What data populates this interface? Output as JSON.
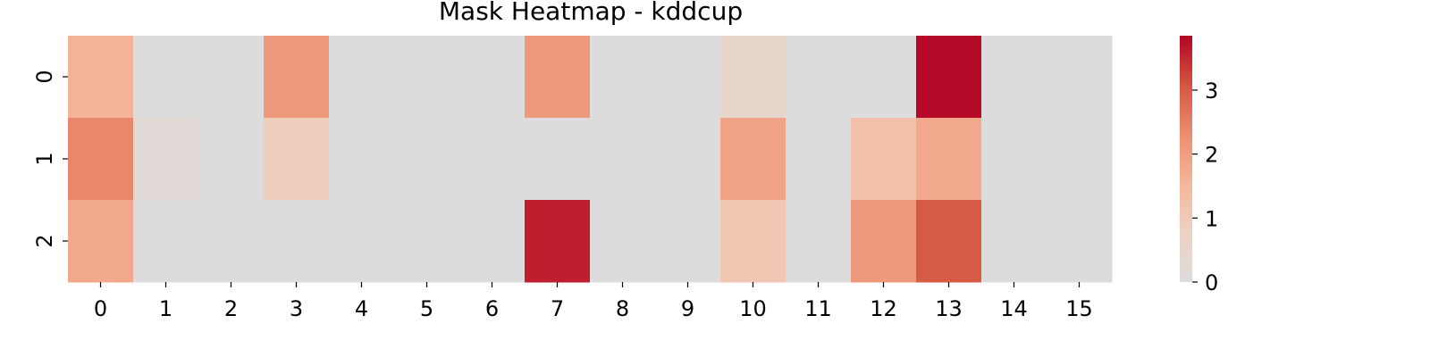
{
  "chart_data": {
    "type": "heatmap",
    "title": "Mask Heatmap - kddcup",
    "x_categories": [
      "0",
      "1",
      "2",
      "3",
      "4",
      "5",
      "6",
      "7",
      "8",
      "9",
      "10",
      "11",
      "12",
      "13",
      "14",
      "15"
    ],
    "y_categories": [
      "0",
      "1",
      "2"
    ],
    "values": [
      [
        1.6,
        0,
        0,
        2.1,
        0,
        0,
        0,
        2.1,
        0,
        0,
        0.5,
        0,
        0,
        3.8,
        0,
        0
      ],
      [
        2.4,
        0.2,
        0,
        0.9,
        0,
        0,
        0,
        0,
        0,
        0,
        1.9,
        0,
        1.3,
        1.8,
        0,
        0
      ],
      [
        1.8,
        0,
        0,
        0,
        0,
        0,
        0,
        3.6,
        0,
        0,
        1.1,
        0,
        2.1,
        3.0,
        0,
        0
      ]
    ],
    "colorbar": {
      "ticks": [
        "0",
        "1",
        "2",
        "3"
      ],
      "range": [
        0,
        3.85
      ],
      "colormap": "coolwarm (upper half)",
      "low_color": "#dddcdc",
      "high_color": "#b40426"
    }
  }
}
